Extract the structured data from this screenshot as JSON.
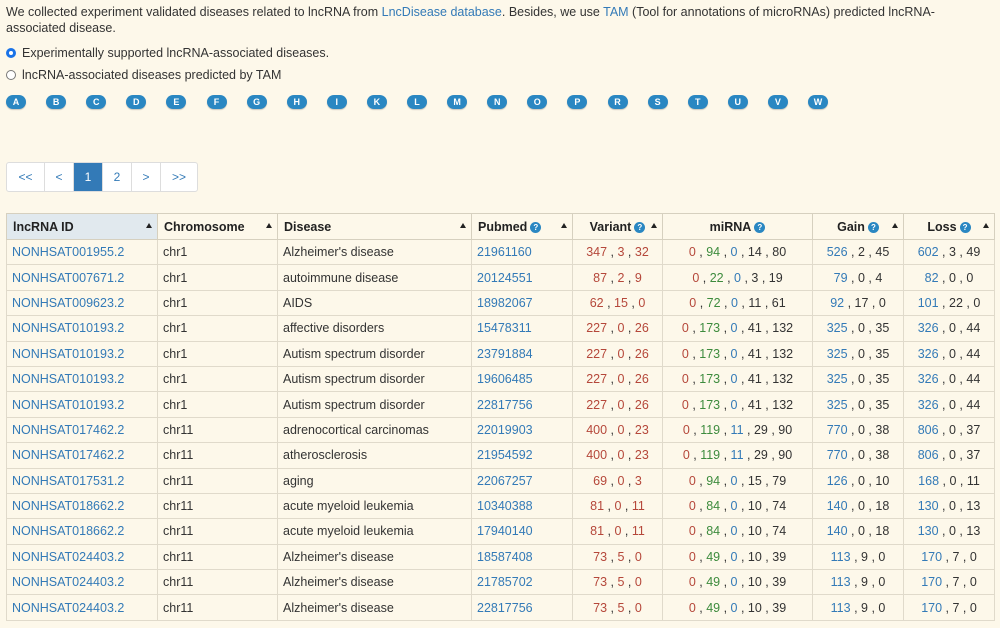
{
  "intro": {
    "part1": "We collected experiment validated diseases related to lncRNA from ",
    "link1": "LncDisease database",
    "part2": ". Besides, we use ",
    "link2": "TAM",
    "part3": " (Tool for annotations of microRNAs) predicted lncRNA-associated disease."
  },
  "options": [
    {
      "label": "Experimentally supported lncRNA-associated diseases.",
      "checked": true
    },
    {
      "label": "lncRNA-associated diseases predicted by TAM",
      "checked": false
    }
  ],
  "letters": [
    "A",
    "B",
    "C",
    "D",
    "E",
    "F",
    "G",
    "H",
    "I",
    "K",
    "L",
    "M",
    "N",
    "O",
    "P",
    "R",
    "S",
    "T",
    "U",
    "V",
    "W"
  ],
  "pagination": {
    "first": "<<",
    "prev": "<",
    "pages": [
      "1",
      "2"
    ],
    "active": "1",
    "next": ">",
    "last": ">>"
  },
  "table": {
    "headers": {
      "id": "lncRNA ID",
      "chromosome": "Chromosome",
      "disease": "Disease",
      "pubmed": "Pubmed",
      "variant": "Variant",
      "mirna": "miRNA",
      "gain": "Gain",
      "loss": "Loss"
    },
    "help_icon": "?",
    "rows": [
      {
        "id": "NONHSAT001955.2",
        "chr": "chr1",
        "disease": "Alzheimer's disease",
        "pubmed": "21961160",
        "variant": [
          "347",
          "3",
          "32"
        ],
        "mirna": [
          "0",
          "94",
          "0",
          "14",
          "80"
        ],
        "gain": [
          "526",
          "2",
          "45"
        ],
        "loss": [
          "602",
          "3",
          "49"
        ]
      },
      {
        "id": "NONHSAT007671.2",
        "chr": "chr1",
        "disease": "autoimmune disease",
        "pubmed": "20124551",
        "variant": [
          "87",
          "2",
          "9"
        ],
        "mirna": [
          "0",
          "22",
          "0",
          "3",
          "19"
        ],
        "gain": [
          "79",
          "0",
          "4"
        ],
        "loss": [
          "82",
          "0",
          "0"
        ]
      },
      {
        "id": "NONHSAT009623.2",
        "chr": "chr1",
        "disease": "AIDS",
        "pubmed": "18982067",
        "variant": [
          "62",
          "15",
          "0"
        ],
        "mirna": [
          "0",
          "72",
          "0",
          "11",
          "61"
        ],
        "gain": [
          "92",
          "17",
          "0"
        ],
        "loss": [
          "101",
          "22",
          "0"
        ]
      },
      {
        "id": "NONHSAT010193.2",
        "chr": "chr1",
        "disease": "affective disorders",
        "pubmed": "15478311",
        "variant": [
          "227",
          "0",
          "26"
        ],
        "mirna": [
          "0",
          "173",
          "0",
          "41",
          "132"
        ],
        "gain": [
          "325",
          "0",
          "35"
        ],
        "loss": [
          "326",
          "0",
          "44"
        ]
      },
      {
        "id": "NONHSAT010193.2",
        "chr": "chr1",
        "disease": "Autism spectrum disorder",
        "pubmed": "23791884",
        "variant": [
          "227",
          "0",
          "26"
        ],
        "mirna": [
          "0",
          "173",
          "0",
          "41",
          "132"
        ],
        "gain": [
          "325",
          "0",
          "35"
        ],
        "loss": [
          "326",
          "0",
          "44"
        ]
      },
      {
        "id": "NONHSAT010193.2",
        "chr": "chr1",
        "disease": "Autism spectrum disorder",
        "pubmed": "19606485",
        "variant": [
          "227",
          "0",
          "26"
        ],
        "mirna": [
          "0",
          "173",
          "0",
          "41",
          "132"
        ],
        "gain": [
          "325",
          "0",
          "35"
        ],
        "loss": [
          "326",
          "0",
          "44"
        ]
      },
      {
        "id": "NONHSAT010193.2",
        "chr": "chr1",
        "disease": "Autism spectrum disorder",
        "pubmed": "22817756",
        "variant": [
          "227",
          "0",
          "26"
        ],
        "mirna": [
          "0",
          "173",
          "0",
          "41",
          "132"
        ],
        "gain": [
          "325",
          "0",
          "35"
        ],
        "loss": [
          "326",
          "0",
          "44"
        ]
      },
      {
        "id": "NONHSAT017462.2",
        "chr": "chr11",
        "disease": "adrenocortical carcinomas",
        "pubmed": "22019903",
        "variant": [
          "400",
          "0",
          "23"
        ],
        "mirna": [
          "0",
          "119",
          "11",
          "29",
          "90"
        ],
        "gain": [
          "770",
          "0",
          "38"
        ],
        "loss": [
          "806",
          "0",
          "37"
        ]
      },
      {
        "id": "NONHSAT017462.2",
        "chr": "chr11",
        "disease": "atherosclerosis",
        "pubmed": "21954592",
        "variant": [
          "400",
          "0",
          "23"
        ],
        "mirna": [
          "0",
          "119",
          "11",
          "29",
          "90"
        ],
        "gain": [
          "770",
          "0",
          "38"
        ],
        "loss": [
          "806",
          "0",
          "37"
        ]
      },
      {
        "id": "NONHSAT017531.2",
        "chr": "chr11",
        "disease": "aging",
        "pubmed": "22067257",
        "variant": [
          "69",
          "0",
          "3"
        ],
        "mirna": [
          "0",
          "94",
          "0",
          "15",
          "79"
        ],
        "gain": [
          "126",
          "0",
          "10"
        ],
        "loss": [
          "168",
          "0",
          "11"
        ]
      },
      {
        "id": "NONHSAT018662.2",
        "chr": "chr11",
        "disease": "acute myeloid leukemia",
        "pubmed": "10340388",
        "variant": [
          "81",
          "0",
          "11"
        ],
        "mirna": [
          "0",
          "84",
          "0",
          "10",
          "74"
        ],
        "gain": [
          "140",
          "0",
          "18"
        ],
        "loss": [
          "130",
          "0",
          "13"
        ]
      },
      {
        "id": "NONHSAT018662.2",
        "chr": "chr11",
        "disease": "acute myeloid leukemia",
        "pubmed": "17940140",
        "variant": [
          "81",
          "0",
          "11"
        ],
        "mirna": [
          "0",
          "84",
          "0",
          "10",
          "74"
        ],
        "gain": [
          "140",
          "0",
          "18"
        ],
        "loss": [
          "130",
          "0",
          "13"
        ]
      },
      {
        "id": "NONHSAT024403.2",
        "chr": "chr11",
        "disease": "Alzheimer's disease",
        "pubmed": "18587408",
        "variant": [
          "73",
          "5",
          "0"
        ],
        "mirna": [
          "0",
          "49",
          "0",
          "10",
          "39"
        ],
        "gain": [
          "113",
          "9",
          "0"
        ],
        "loss": [
          "170",
          "7",
          "0"
        ]
      },
      {
        "id": "NONHSAT024403.2",
        "chr": "chr11",
        "disease": "Alzheimer's disease",
        "pubmed": "21785702",
        "variant": [
          "73",
          "5",
          "0"
        ],
        "mirna": [
          "0",
          "49",
          "0",
          "10",
          "39"
        ],
        "gain": [
          "113",
          "9",
          "0"
        ],
        "loss": [
          "170",
          "7",
          "0"
        ]
      },
      {
        "id": "NONHSAT024403.2",
        "chr": "chr11",
        "disease": "Alzheimer's disease",
        "pubmed": "22817756",
        "variant": [
          "73",
          "5",
          "0"
        ],
        "mirna": [
          "0",
          "49",
          "0",
          "10",
          "39"
        ],
        "gain": [
          "113",
          "9",
          "0"
        ],
        "loss": [
          "170",
          "7",
          "0"
        ]
      }
    ]
  },
  "colors": {
    "background": "#fdf8ea",
    "link": "#337ab7",
    "accent": "#2a87c2",
    "variant_text": "#b5473a",
    "sorted_header": "#e1e9ee"
  }
}
